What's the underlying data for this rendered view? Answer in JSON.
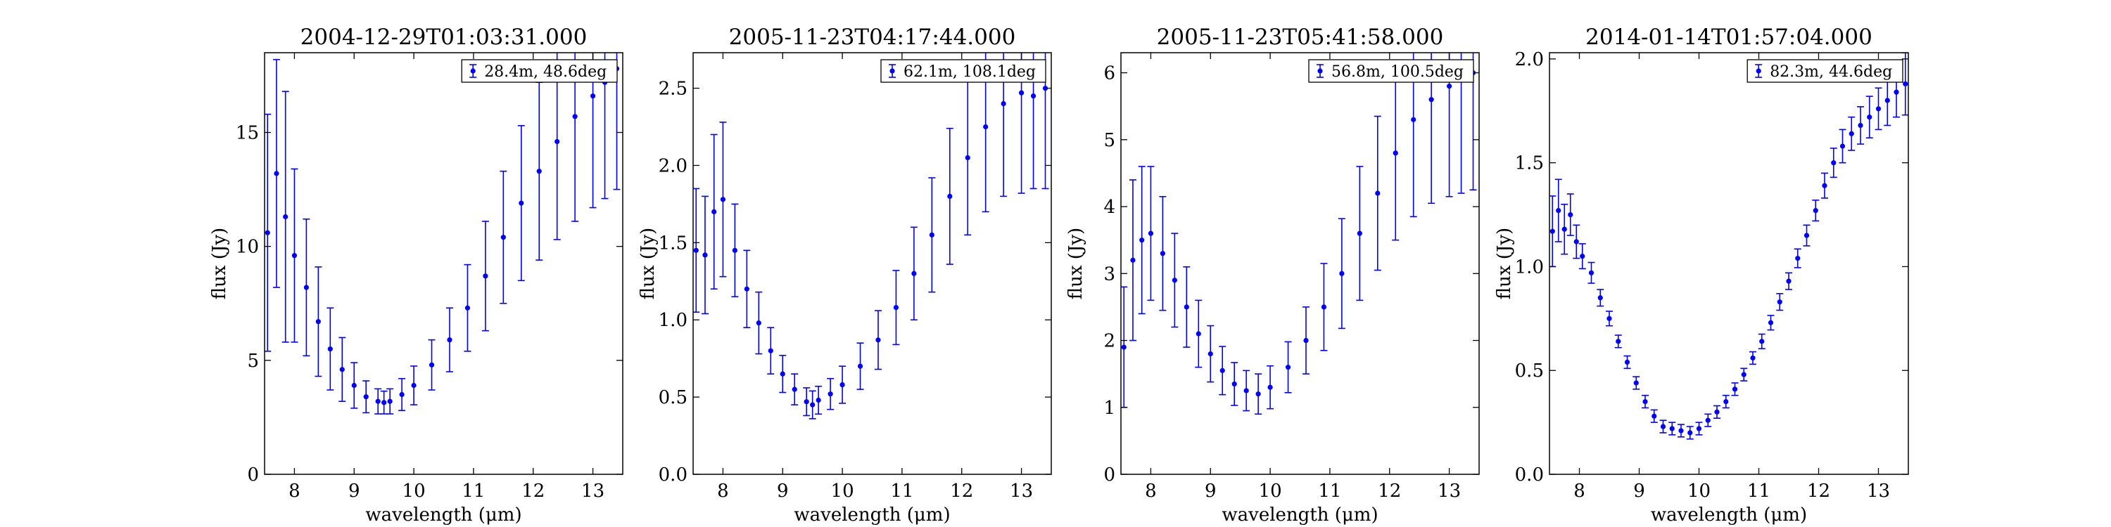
{
  "figure": {
    "colors": {
      "series": "#0000ff",
      "axes": "#000000",
      "background": "#ffffff"
    }
  },
  "chart_data": [
    {
      "type": "scatter",
      "title": "2004-12-29T01:03:31.000",
      "xlabel": "wavelength (μm)",
      "ylabel": "flux (Jy)",
      "xlim": [
        7.5,
        13.5
      ],
      "ylim": [
        0,
        18.5
      ],
      "xticks": [
        8,
        9,
        10,
        11,
        12,
        13
      ],
      "yticks": [
        0,
        5,
        10,
        15
      ],
      "ytick_labels": [
        "0",
        "5",
        "10",
        "15"
      ],
      "grid": false,
      "legend": {
        "position": "top-right",
        "entries": [
          "28.4m, 48.6deg"
        ]
      },
      "error_bars": true,
      "series": [
        {
          "name": "28.4m, 48.6deg",
          "x": [
            7.55,
            7.7,
            7.85,
            8.0,
            8.2,
            8.4,
            8.6,
            8.8,
            9.0,
            9.2,
            9.4,
            9.5,
            9.6,
            9.8,
            10.0,
            10.3,
            10.6,
            10.9,
            11.2,
            11.5,
            11.8,
            12.1,
            12.4,
            12.7,
            13.0,
            13.2,
            13.4
          ],
          "y": [
            10.6,
            13.2,
            11.3,
            9.6,
            8.2,
            6.7,
            5.5,
            4.6,
            3.9,
            3.4,
            3.2,
            3.15,
            3.2,
            3.5,
            3.9,
            4.8,
            5.9,
            7.3,
            8.7,
            10.4,
            11.9,
            13.3,
            14.6,
            15.7,
            16.6,
            17.2,
            17.8
          ],
          "err": [
            5.2,
            5.0,
            5.5,
            3.8,
            3.0,
            2.4,
            1.8,
            1.4,
            1.0,
            0.7,
            0.55,
            0.5,
            0.55,
            0.7,
            0.85,
            1.1,
            1.4,
            1.9,
            2.4,
            2.9,
            3.4,
            3.9,
            4.3,
            4.6,
            4.9,
            5.1,
            5.3
          ]
        }
      ]
    },
    {
      "type": "scatter",
      "title": "2005-11-23T04:17:44.000",
      "xlabel": "wavelength (μm)",
      "ylabel": "flux (Jy)",
      "xlim": [
        7.5,
        13.5
      ],
      "ylim": [
        0,
        2.73
      ],
      "xticks": [
        8,
        9,
        10,
        11,
        12,
        13
      ],
      "yticks": [
        0.0,
        0.5,
        1.0,
        1.5,
        2.0,
        2.5
      ],
      "ytick_labels": [
        "0.0",
        "0.5",
        "1.0",
        "1.5",
        "2.0",
        "2.5"
      ],
      "grid": false,
      "legend": {
        "position": "top-right",
        "entries": [
          "62.1m, 108.1deg"
        ]
      },
      "error_bars": true,
      "series": [
        {
          "name": "62.1m, 108.1deg",
          "x": [
            7.55,
            7.7,
            7.85,
            8.0,
            8.2,
            8.4,
            8.6,
            8.8,
            9.0,
            9.2,
            9.4,
            9.5,
            9.6,
            9.8,
            10.0,
            10.3,
            10.6,
            10.9,
            11.2,
            11.5,
            11.8,
            12.1,
            12.4,
            12.7,
            13.0,
            13.2,
            13.4
          ],
          "y": [
            1.45,
            1.42,
            1.7,
            1.78,
            1.45,
            1.2,
            0.98,
            0.8,
            0.65,
            0.55,
            0.47,
            0.45,
            0.48,
            0.52,
            0.58,
            0.7,
            0.87,
            1.08,
            1.3,
            1.55,
            1.8,
            2.05,
            2.25,
            2.4,
            2.47,
            2.45,
            2.5
          ],
          "err": [
            0.4,
            0.38,
            0.5,
            0.5,
            0.3,
            0.25,
            0.2,
            0.15,
            0.12,
            0.1,
            0.09,
            0.09,
            0.09,
            0.1,
            0.12,
            0.15,
            0.19,
            0.24,
            0.3,
            0.37,
            0.44,
            0.5,
            0.55,
            0.6,
            0.65,
            0.6,
            0.65
          ]
        }
      ]
    },
    {
      "type": "scatter",
      "title": "2005-11-23T05:41:58.000",
      "xlabel": "wavelength (μm)",
      "ylabel": "flux (Jy)",
      "xlim": [
        7.5,
        13.5
      ],
      "ylim": [
        0,
        6.3
      ],
      "xticks": [
        8,
        9,
        10,
        11,
        12,
        13
      ],
      "yticks": [
        0,
        1,
        2,
        3,
        4,
        5,
        6
      ],
      "ytick_labels": [
        "0",
        "1",
        "2",
        "3",
        "4",
        "5",
        "6"
      ],
      "grid": false,
      "legend": {
        "position": "top-right",
        "entries": [
          "56.8m, 100.5deg"
        ]
      },
      "error_bars": true,
      "series": [
        {
          "name": "56.8m, 100.5deg",
          "x": [
            7.55,
            7.7,
            7.85,
            8.0,
            8.2,
            8.4,
            8.6,
            8.8,
            9.0,
            9.2,
            9.4,
            9.6,
            9.8,
            10.0,
            10.3,
            10.6,
            10.9,
            11.2,
            11.5,
            11.8,
            12.1,
            12.4,
            12.7,
            13.0,
            13.2,
            13.4
          ],
          "y": [
            1.9,
            3.2,
            3.5,
            3.6,
            3.3,
            2.9,
            2.5,
            2.1,
            1.8,
            1.55,
            1.35,
            1.25,
            1.2,
            1.3,
            1.6,
            2.0,
            2.5,
            3.0,
            3.6,
            4.2,
            4.8,
            5.3,
            5.6,
            5.8,
            5.9,
            6.0
          ],
          "err": [
            0.9,
            1.2,
            1.1,
            1.0,
            0.85,
            0.7,
            0.6,
            0.5,
            0.42,
            0.36,
            0.32,
            0.3,
            0.3,
            0.32,
            0.38,
            0.5,
            0.65,
            0.82,
            1.0,
            1.15,
            1.3,
            1.45,
            1.55,
            1.65,
            1.7,
            1.75
          ]
        }
      ]
    },
    {
      "type": "scatter",
      "title": "2014-01-14T01:57:04.000",
      "xlabel": "wavelength (μm)",
      "ylabel": "flux (Jy)",
      "xlim": [
        7.5,
        13.5
      ],
      "ylim": [
        0,
        2.03
      ],
      "xticks": [
        8,
        9,
        10,
        11,
        12,
        13
      ],
      "yticks": [
        0.0,
        0.5,
        1.0,
        1.5,
        2.0
      ],
      "ytick_labels": [
        "0.0",
        "0.5",
        "1.0",
        "1.5",
        "2.0"
      ],
      "grid": false,
      "legend": {
        "position": "top-right",
        "entries": [
          "82.3m, 44.6deg"
        ]
      },
      "error_bars": true,
      "series": [
        {
          "name": "82.3m, 44.6deg",
          "x": [
            7.55,
            7.65,
            7.75,
            7.85,
            7.95,
            8.05,
            8.2,
            8.35,
            8.5,
            8.65,
            8.8,
            8.95,
            9.1,
            9.25,
            9.4,
            9.55,
            9.7,
            9.85,
            10.0,
            10.15,
            10.3,
            10.45,
            10.6,
            10.75,
            10.9,
            11.05,
            11.2,
            11.35,
            11.5,
            11.65,
            11.8,
            11.95,
            12.1,
            12.25,
            12.4,
            12.55,
            12.7,
            12.85,
            13.0,
            13.15,
            13.3,
            13.45
          ],
          "y": [
            1.17,
            1.27,
            1.18,
            1.25,
            1.12,
            1.05,
            0.97,
            0.85,
            0.75,
            0.64,
            0.54,
            0.44,
            0.35,
            0.28,
            0.23,
            0.22,
            0.21,
            0.2,
            0.22,
            0.26,
            0.3,
            0.35,
            0.41,
            0.48,
            0.56,
            0.64,
            0.73,
            0.83,
            0.93,
            1.04,
            1.15,
            1.27,
            1.39,
            1.5,
            1.58,
            1.64,
            1.68,
            1.72,
            1.76,
            1.8,
            1.84,
            1.88
          ],
          "err": [
            0.17,
            0.15,
            0.12,
            0.1,
            0.08,
            0.06,
            0.05,
            0.04,
            0.035,
            0.03,
            0.03,
            0.03,
            0.03,
            0.03,
            0.03,
            0.03,
            0.03,
            0.03,
            0.03,
            0.03,
            0.03,
            0.03,
            0.03,
            0.03,
            0.03,
            0.035,
            0.035,
            0.04,
            0.04,
            0.045,
            0.05,
            0.05,
            0.06,
            0.07,
            0.08,
            0.08,
            0.09,
            0.1,
            0.1,
            0.12,
            0.12,
            0.15
          ]
        }
      ]
    }
  ]
}
